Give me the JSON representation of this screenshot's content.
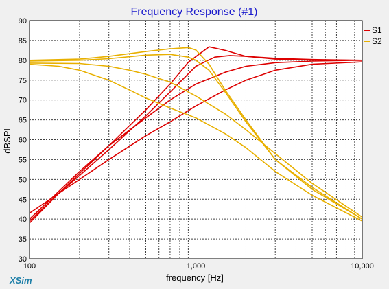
{
  "chart_data": {
    "type": "line",
    "title": "Frequency Response (#1)",
    "xlabel": "frequency [Hz]",
    "ylabel": "dBSPL",
    "xscale": "log",
    "xlim": [
      100,
      10000
    ],
    "ylim": [
      30,
      90
    ],
    "x_ticks": [
      100,
      1000,
      10000
    ],
    "x_tick_labels": [
      "100",
      "1,000",
      "10,000"
    ],
    "y_ticks": [
      30,
      35,
      40,
      45,
      50,
      55,
      60,
      65,
      70,
      75,
      80,
      85,
      90
    ],
    "y_tick_labels": [
      "30",
      "35",
      "40",
      "45",
      "50",
      "55",
      "60",
      "65",
      "70",
      "75",
      "80",
      "85",
      "90"
    ],
    "grid": true,
    "legend_position": "right",
    "brand": "XSim",
    "series": [
      {
        "name": "S1",
        "color": "#dd0000",
        "x": [
          100,
          150,
          200,
          300,
          500,
          700,
          900,
          1200,
          1500,
          2000,
          3000,
          5000,
          10000
        ],
        "y": [
          39,
          46.5,
          51.5,
          58.5,
          67.5,
          74,
          79.5,
          83.4,
          82.5,
          81,
          80.3,
          80.1,
          80
        ]
      },
      {
        "name": "",
        "color": "#dd0000",
        "x": [
          100,
          150,
          200,
          300,
          500,
          700,
          1000,
          1300,
          1600,
          2000,
          3000,
          5000,
          10000
        ],
        "y": [
          39.5,
          46.5,
          51,
          57.5,
          66,
          72,
          78.5,
          80.8,
          81.2,
          81,
          80.5,
          80.2,
          80
        ]
      },
      {
        "name": "",
        "color": "#dd0000",
        "x": [
          100,
          150,
          200,
          300,
          500,
          700,
          1000,
          1500,
          2000,
          3000,
          5000,
          10000
        ],
        "y": [
          40,
          47,
          52,
          58.5,
          65.5,
          70,
          74,
          77,
          78.5,
          79.4,
          79.8,
          80
        ]
      },
      {
        "name": "",
        "color": "#dd0000",
        "x": [
          100,
          150,
          200,
          300,
          500,
          700,
          1000,
          1500,
          2000,
          3000,
          5000,
          10000
        ],
        "y": [
          41.5,
          46.5,
          50,
          55,
          61,
          64.5,
          68.5,
          72.5,
          75,
          77.5,
          79,
          79.6
        ]
      },
      {
        "name": "S2",
        "color": "#e8b000",
        "x": [
          100,
          200,
          300,
          500,
          700,
          900,
          1000,
          1200,
          1500,
          2000,
          3000,
          5000,
          10000
        ],
        "y": [
          80,
          80.3,
          81,
          82.2,
          82.9,
          83.2,
          82.6,
          79,
          72.5,
          65,
          55,
          48,
          40
        ]
      },
      {
        "name": "",
        "color": "#e8b000",
        "x": [
          100,
          200,
          300,
          500,
          700,
          900,
          1000,
          1200,
          1500,
          2000,
          3000,
          5000,
          10000
        ],
        "y": [
          79.8,
          80,
          80.4,
          81.3,
          81.5,
          80.8,
          80,
          77.5,
          72,
          64.5,
          55,
          47.5,
          40
        ]
      },
      {
        "name": "",
        "color": "#e8b000",
        "x": [
          100,
          200,
          300,
          400,
          500,
          700,
          1000,
          1500,
          2000,
          3000,
          5000,
          10000
        ],
        "y": [
          79.3,
          79.2,
          78.5,
          77.5,
          76.5,
          74.5,
          71,
          66.5,
          62.5,
          56.5,
          49,
          40.5
        ]
      },
      {
        "name": "",
        "color": "#e8b000",
        "x": [
          100,
          150,
          200,
          300,
          400,
          500,
          700,
          1000,
          1500,
          2000,
          3000,
          5000,
          10000
        ],
        "y": [
          79,
          78.5,
          77.5,
          75,
          72.5,
          70.5,
          68,
          65.5,
          61.5,
          58,
          52,
          46,
          39.5
        ]
      }
    ]
  }
}
